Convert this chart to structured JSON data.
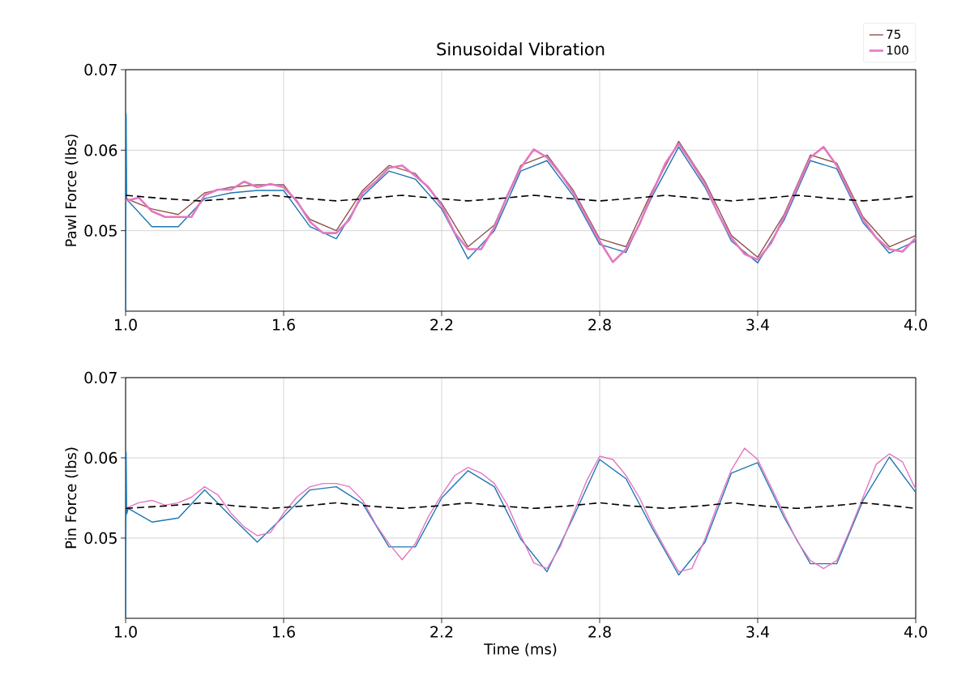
{
  "chart_data": [
    {
      "type": "line",
      "title": "Sinusoidal Vibration",
      "ylabel": "Pawl Force (lbs)",
      "xlim": [
        1,
        4
      ],
      "ylim": [
        0.04,
        0.07
      ],
      "xticks": [
        {
          "value": 1,
          "label": "1.0"
        },
        {
          "value": 1.6,
          "label": "1.6"
        },
        {
          "value": 2.2,
          "label": "2.2"
        },
        {
          "value": 2.8,
          "label": "2.8"
        },
        {
          "value": 3.4,
          "label": "3.4"
        },
        {
          "value": 4,
          "label": "4.0"
        }
      ],
      "yticks": [
        0.05,
        0.06,
        0.07
      ],
      "grid": true,
      "legend": "top right",
      "x": [
        1.0,
        1.05,
        1.1,
        1.15,
        1.2,
        1.25,
        1.3,
        1.35,
        1.4,
        1.45,
        1.5,
        1.55,
        1.6,
        1.65,
        1.7,
        1.75,
        1.8,
        1.85,
        1.9,
        1.95,
        2.0,
        2.05,
        2.1,
        2.15,
        2.2,
        2.25,
        2.3,
        2.35,
        2.4,
        2.45,
        2.5,
        2.55,
        2.6,
        2.65,
        2.7,
        2.75,
        2.8,
        2.85,
        2.9,
        2.95,
        3.0,
        3.05,
        3.1,
        3.15,
        3.2,
        3.25,
        3.3,
        3.35,
        3.4,
        3.45,
        3.5,
        3.55,
        3.6,
        3.65,
        3.7,
        3.75,
        3.8,
        3.85,
        3.9,
        3.95,
        4.0
      ],
      "series": [
        {
          "color": "#1f77b4",
          "x": [
            1.0,
            1.002,
            1.004,
            1.01,
            1.1,
            1.2,
            1.3,
            1.4,
            1.5,
            1.6,
            1.7,
            1.8,
            1.9,
            2.0,
            2.1,
            2.2,
            2.3,
            2.4,
            2.5,
            2.6,
            2.7,
            2.8,
            2.9,
            3.0,
            3.1,
            3.2,
            3.3,
            3.4,
            3.5,
            3.6,
            3.7,
            3.8,
            3.9,
            4.0
          ],
          "values": [
            0.04,
            0.0645,
            0.054,
            0.0537,
            0.0505,
            0.0505,
            0.054,
            0.0547,
            0.055,
            0.055,
            0.0505,
            0.049,
            0.0543,
            0.0574,
            0.0564,
            0.0527,
            0.0465,
            0.05,
            0.0574,
            0.0587,
            0.0543,
            0.0483,
            0.0473,
            0.0543,
            0.0604,
            0.0554,
            0.0487,
            0.046,
            0.0513,
            0.0587,
            0.0577,
            0.051,
            0.0472,
            0.0487
          ]
        },
        {
          "name": "75",
          "color": "#8c564b",
          "x": [
            1.0,
            1.1,
            1.2,
            1.3,
            1.4,
            1.5,
            1.6,
            1.7,
            1.8,
            1.9,
            2.0,
            2.1,
            2.2,
            2.3,
            2.4,
            2.5,
            2.6,
            2.7,
            2.8,
            2.9,
            3.0,
            3.1,
            3.2,
            3.3,
            3.4,
            3.5,
            3.6,
            3.7,
            3.8,
            3.9,
            4.0
          ],
          "values": [
            0.054,
            0.0527,
            0.052,
            0.0547,
            0.0554,
            0.0557,
            0.0557,
            0.0514,
            0.05,
            0.055,
            0.0581,
            0.0571,
            0.0534,
            0.048,
            0.0507,
            0.0581,
            0.0594,
            0.055,
            0.049,
            0.048,
            0.055,
            0.0611,
            0.0561,
            0.0494,
            0.0467,
            0.052,
            0.0594,
            0.0584,
            0.0517,
            0.048,
            0.0494
          ]
        },
        {
          "name": "100",
          "color": "#e377c2",
          "values": [
            0.0537,
            0.0541,
            0.0524,
            0.0517,
            0.0517,
            0.0517,
            0.0544,
            0.0551,
            0.0551,
            0.0561,
            0.0554,
            0.0558,
            0.0554,
            0.0537,
            0.0511,
            0.0497,
            0.0497,
            0.0514,
            0.0547,
            0.0561,
            0.0578,
            0.0581,
            0.0568,
            0.0554,
            0.0531,
            0.0497,
            0.0477,
            0.0477,
            0.0504,
            0.0544,
            0.0578,
            0.0601,
            0.0591,
            0.0571,
            0.0547,
            0.0517,
            0.0487,
            0.0461,
            0.0477,
            0.0507,
            0.0547,
            0.0584,
            0.0608,
            0.0584,
            0.0558,
            0.0521,
            0.0491,
            0.0471,
            0.0464,
            0.0484,
            0.0517,
            0.0554,
            0.0591,
            0.0604,
            0.0581,
            0.0547,
            0.0514,
            0.0491,
            0.0477,
            0.0474,
            0.0491
          ]
        },
        {
          "color": "#000000",
          "line_style": "dashed",
          "x": [
            1.0,
            1.14,
            1.28,
            1.42,
            1.55,
            1.68,
            1.8,
            1.92,
            2.05,
            2.18,
            2.3,
            2.42,
            2.55,
            2.68,
            2.8,
            2.92,
            3.05,
            3.18,
            3.3,
            3.42,
            3.55,
            3.68,
            3.8,
            3.92,
            4.0
          ],
          "values": [
            0.0544,
            0.054,
            0.0537,
            0.054,
            0.0544,
            0.054,
            0.0537,
            0.054,
            0.0544,
            0.054,
            0.0537,
            0.054,
            0.0544,
            0.054,
            0.0537,
            0.054,
            0.0544,
            0.054,
            0.0537,
            0.054,
            0.0544,
            0.054,
            0.0537,
            0.054,
            0.0543
          ]
        }
      ]
    },
    {
      "type": "line",
      "xlabel": "Time (ms)",
      "ylabel": "Pin Force (lbs)",
      "xlim": [
        1,
        4
      ],
      "ylim": [
        0.04,
        0.07
      ],
      "xticks": [
        {
          "value": 1,
          "label": "1.0"
        },
        {
          "value": 1.6,
          "label": "1.6"
        },
        {
          "value": 2.2,
          "label": "2.2"
        },
        {
          "value": 2.8,
          "label": "2.8"
        },
        {
          "value": 3.4,
          "label": "3.4"
        },
        {
          "value": 4,
          "label": "4.0"
        }
      ],
      "yticks": [
        0.05,
        0.06,
        0.07
      ],
      "grid": true,
      "x": [
        1.0,
        1.05,
        1.1,
        1.15,
        1.2,
        1.25,
        1.3,
        1.35,
        1.4,
        1.45,
        1.5,
        1.55,
        1.6,
        1.65,
        1.7,
        1.75,
        1.8,
        1.85,
        1.9,
        1.95,
        2.0,
        2.05,
        2.1,
        2.15,
        2.2,
        2.25,
        2.3,
        2.35,
        2.4,
        2.45,
        2.5,
        2.55,
        2.6,
        2.65,
        2.7,
        2.75,
        2.8,
        2.85,
        2.9,
        2.95,
        3.0,
        3.05,
        3.1,
        3.15,
        3.2,
        3.25,
        3.3,
        3.35,
        3.4,
        3.45,
        3.5,
        3.55,
        3.6,
        3.65,
        3.7,
        3.75,
        3.8,
        3.85,
        3.9,
        3.95,
        4.0
      ],
      "series": [
        {
          "color": "#1f77b4",
          "x": [
            1.0,
            1.002,
            1.004,
            1.01,
            1.1,
            1.2,
            1.3,
            1.4,
            1.5,
            1.6,
            1.7,
            1.8,
            1.9,
            2.0,
            2.1,
            2.2,
            2.3,
            2.4,
            2.5,
            2.6,
            2.7,
            2.8,
            2.9,
            3.0,
            3.1,
            3.2,
            3.3,
            3.4,
            3.5,
            3.6,
            3.7,
            3.8,
            3.9,
            4.0
          ],
          "values": [
            0.04,
            0.0607,
            0.053,
            0.0537,
            0.052,
            0.0525,
            0.056,
            0.0527,
            0.0495,
            0.0527,
            0.056,
            0.0564,
            0.0543,
            0.0489,
            0.0489,
            0.055,
            0.0584,
            0.0564,
            0.0499,
            0.0458,
            0.0526,
            0.0598,
            0.0574,
            0.0512,
            0.0454,
            0.0495,
            0.0581,
            0.0594,
            0.0526,
            0.0468,
            0.0468,
            0.0547,
            0.0601,
            0.0557
          ]
        },
        {
          "color": "#e377c2",
          "values": [
            0.0537,
            0.0544,
            0.0547,
            0.0541,
            0.0544,
            0.0551,
            0.0564,
            0.0554,
            0.0531,
            0.0514,
            0.0503,
            0.0507,
            0.0531,
            0.0551,
            0.0564,
            0.0568,
            0.0568,
            0.0564,
            0.0547,
            0.0517,
            0.0493,
            0.0473,
            0.0493,
            0.0527,
            0.0554,
            0.0578,
            0.0588,
            0.0581,
            0.0568,
            0.0541,
            0.0503,
            0.0469,
            0.0462,
            0.0489,
            0.053,
            0.0571,
            0.0602,
            0.0598,
            0.0578,
            0.0551,
            0.0516,
            0.0486,
            0.0458,
            0.0462,
            0.0499,
            0.0544,
            0.0585,
            0.0612,
            0.0598,
            0.0564,
            0.053,
            0.0496,
            0.0472,
            0.0462,
            0.0472,
            0.051,
            0.0551,
            0.0592,
            0.0605,
            0.0595,
            0.0561
          ]
        },
        {
          "color": "#000000",
          "line_style": "dashed",
          "x": [
            1.0,
            1.15,
            1.3,
            1.42,
            1.55,
            1.68,
            1.8,
            1.92,
            2.05,
            2.18,
            2.3,
            2.42,
            2.55,
            2.68,
            2.8,
            2.92,
            3.05,
            3.18,
            3.3,
            3.42,
            3.55,
            3.68,
            3.8,
            3.92,
            4.0
          ],
          "values": [
            0.0537,
            0.054,
            0.0544,
            0.054,
            0.0537,
            0.054,
            0.0544,
            0.054,
            0.0537,
            0.054,
            0.0544,
            0.054,
            0.0537,
            0.054,
            0.0544,
            0.054,
            0.0537,
            0.054,
            0.0544,
            0.054,
            0.0537,
            0.054,
            0.0544,
            0.054,
            0.0537
          ]
        }
      ]
    }
  ]
}
